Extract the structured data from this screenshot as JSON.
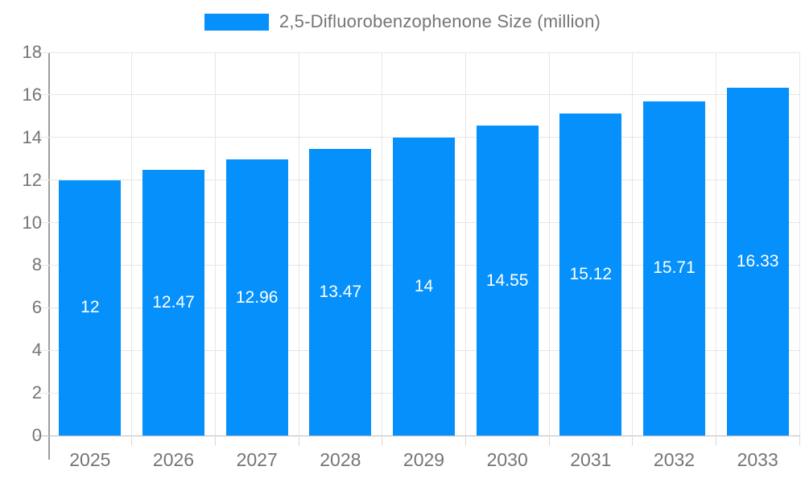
{
  "legend": {
    "label": "2,5-Difluorobenzophenone Size (million)"
  },
  "colors": {
    "bar": "#0590fc",
    "grid": "#e6e6e6",
    "zero_line": "#bdbdbd",
    "axis_line": "#9e9e9e",
    "tick_text": "#757575",
    "bar_label_text": "#ffffff",
    "background": "#ffffff"
  },
  "chart_data": {
    "type": "bar",
    "title": "2,5-Difluorobenzophenone Size (million)",
    "categories": [
      "2025",
      "2026",
      "2027",
      "2028",
      "2029",
      "2030",
      "2031",
      "2032",
      "2033"
    ],
    "values": [
      12,
      12.47,
      12.96,
      13.47,
      14,
      14.55,
      15.12,
      15.71,
      16.33
    ],
    "value_labels": [
      "12",
      "12.47",
      "12.96",
      "13.47",
      "14",
      "14.55",
      "15.12",
      "15.71",
      "16.33"
    ],
    "series_name": "2,5-Difluorobenzophenone Size (million)",
    "xlabel": "",
    "ylabel": "",
    "ylim": [
      0,
      18
    ],
    "yticks": [
      0,
      2,
      4,
      6,
      8,
      10,
      12,
      14,
      16,
      18
    ],
    "grid": true,
    "legend_position": "top",
    "bar_color": "#0590fc",
    "bar_label_position": "center"
  }
}
